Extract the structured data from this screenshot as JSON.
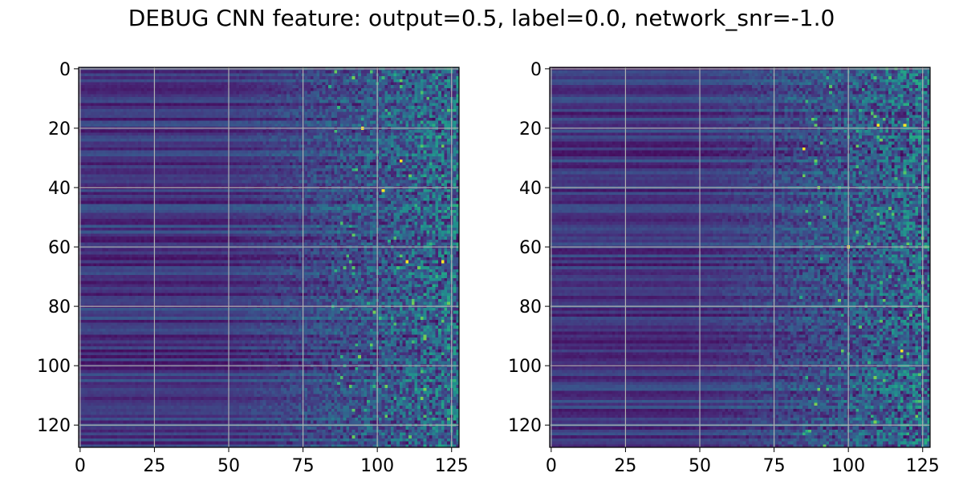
{
  "figure": {
    "title": "DEBUG CNN feature: output=0.5, label=0.0, network_snr=-1.0"
  },
  "chart_data": [
    {
      "type": "heatmap",
      "colormap": "viridis",
      "rows": 128,
      "cols": 128,
      "xlim": [
        -0.5,
        127.5
      ],
      "ylim": [
        127.5,
        -0.5
      ],
      "x_ticks": [
        0,
        25,
        50,
        75,
        100,
        125
      ],
      "y_ticks": [
        0,
        20,
        40,
        60,
        80,
        100,
        120
      ],
      "x_tick_labels": [
        "0",
        "25",
        "50",
        "75",
        "100",
        "125"
      ],
      "y_tick_labels": [
        "0",
        "20",
        "40",
        "60",
        "80",
        "100",
        "120"
      ],
      "grid": true,
      "pattern": "columns 0-50 smooth low-valued horizontal streaks; noise increases rightward; columns 75-127 high-variance speckle",
      "bright_pixels": [
        [
          20,
          95
        ],
        [
          31,
          108
        ],
        [
          65,
          110
        ],
        [
          65,
          122
        ],
        [
          41,
          102
        ]
      ]
    },
    {
      "type": "heatmap",
      "colormap": "viridis",
      "rows": 128,
      "cols": 128,
      "xlim": [
        -0.5,
        127.5
      ],
      "ylim": [
        127.5,
        -0.5
      ],
      "x_ticks": [
        0,
        25,
        50,
        75,
        100,
        125
      ],
      "y_ticks": [
        0,
        20,
        40,
        60,
        80,
        100,
        120
      ],
      "x_tick_labels": [
        "0",
        "25",
        "50",
        "75",
        "100",
        "125"
      ],
      "y_tick_labels": [
        "0",
        "20",
        "40",
        "60",
        "80",
        "100",
        "120"
      ],
      "grid": true,
      "pattern": "columns 0-50 smooth low-valued horizontal streaks; noise increases rightward; columns 75-127 high-variance speckle",
      "bright_pixels": [
        [
          19,
          110
        ],
        [
          19,
          119
        ],
        [
          95,
          118
        ],
        [
          60,
          100
        ],
        [
          27,
          85
        ]
      ]
    }
  ]
}
